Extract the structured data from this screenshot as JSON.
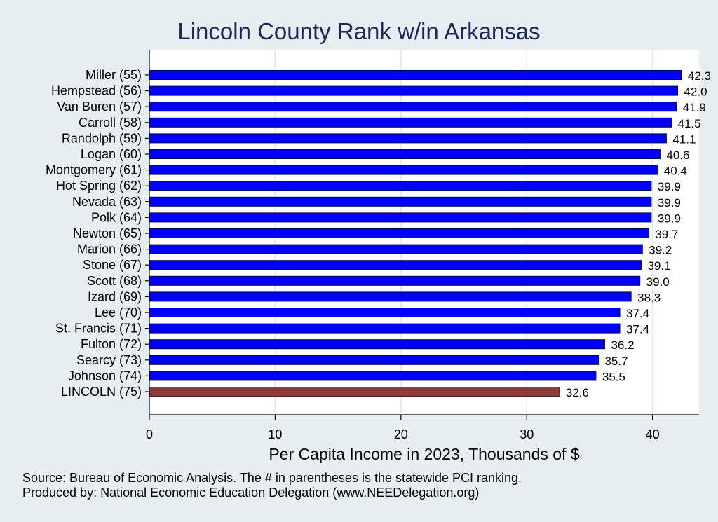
{
  "chart_data": {
    "type": "bar",
    "orientation": "horizontal",
    "title": "Lincoln County Rank w/in Arkansas",
    "xlabel": "Per Capita Income in 2023, Thousands of $",
    "ylabel": "",
    "xlim": [
      0,
      43.7
    ],
    "xticks": [
      0,
      10,
      20,
      30,
      40
    ],
    "grid": true,
    "categories": [
      "Miller (55)",
      "Hempstead (56)",
      "Van Buren (57)",
      "Carroll (58)",
      "Randolph (59)",
      "Logan (60)",
      "Montgomery (61)",
      "Hot Spring (62)",
      "Nevada (63)",
      "Polk (64)",
      "Newton (65)",
      "Marion (66)",
      "Stone (67)",
      "Scott (68)",
      "Izard (69)",
      "Lee (70)",
      "St. Francis (71)",
      "Fulton (72)",
      "Searcy (73)",
      "Johnson (74)",
      "LINCOLN (75)"
    ],
    "values": [
      42.3,
      42.0,
      41.9,
      41.5,
      41.1,
      40.6,
      40.4,
      39.9,
      39.9,
      39.9,
      39.7,
      39.2,
      39.1,
      39.0,
      38.3,
      37.4,
      37.4,
      36.2,
      35.7,
      35.5,
      32.6
    ],
    "value_labels": [
      "42.3",
      "42.0",
      "41.9",
      "41.5",
      "41.1",
      "40.6",
      "40.4",
      "39.9",
      "39.9",
      "39.9",
      "39.7",
      "39.2",
      "39.1",
      "39.0",
      "38.3",
      "37.4",
      "37.4",
      "36.2",
      "35.7",
      "35.5",
      "32.6"
    ],
    "colors": {
      "bar": "#0000ff",
      "highlight_bar": "#8b3a3a",
      "bar_edge": "#00005a",
      "grid": "#dbe6ec",
      "title": "#1c2a5a"
    },
    "highlight_index": 20,
    "notes": [
      "Source: Bureau of Economic Analysis. The # in parentheses is the statewide PCI ranking.",
      "Produced by: National Economic Education Delegation (www.NEEDelegation.org)"
    ]
  }
}
